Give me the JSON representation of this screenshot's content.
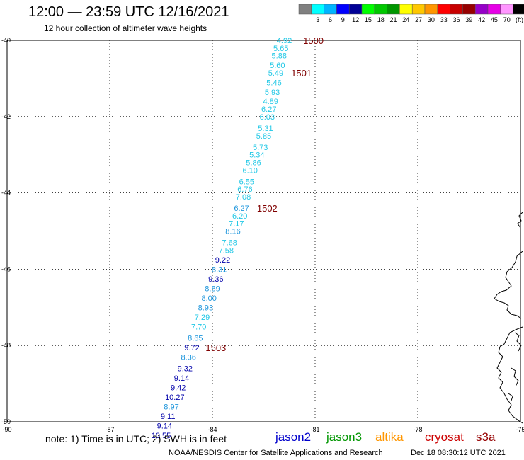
{
  "header": {
    "title": "12:00 — 23:59 UTC 12/16/2021",
    "subtitle": "12 hour collection of altimeter wave heights"
  },
  "legend": {
    "colorbar": [
      {
        "color": "#808080",
        "label": ""
      },
      {
        "color": "#00ffff",
        "label": "3"
      },
      {
        "color": "#00b4ff",
        "label": "6"
      },
      {
        "color": "#0000ff",
        "label": "9"
      },
      {
        "color": "#000096",
        "label": "12"
      },
      {
        "color": "#00ff00",
        "label": "15"
      },
      {
        "color": "#00c800",
        "label": "18"
      },
      {
        "color": "#009600",
        "label": "21"
      },
      {
        "color": "#ffff00",
        "label": "24"
      },
      {
        "color": "#ffc800",
        "label": "27"
      },
      {
        "color": "#ff9600",
        "label": "30"
      },
      {
        "color": "#ff0000",
        "label": "33"
      },
      {
        "color": "#c80000",
        "label": "36"
      },
      {
        "color": "#960000",
        "label": "39"
      },
      {
        "color": "#9600c8",
        "label": "42"
      },
      {
        "color": "#e600e6",
        "label": "45"
      },
      {
        "color": "#ff96ff",
        "label": "70"
      },
      {
        "color": "#000000",
        "label": "(ft)"
      }
    ]
  },
  "footer": {
    "note": "note:  1) Time is in UTC; 2) SWH is in feet",
    "credit": "NOAA/NESDIS Center for Satellite Applications and Research",
    "timestamp": "Dec 18 08:30:12 UTC 2021",
    "satellites": [
      {
        "name": "jason2",
        "color": "#0000cc"
      },
      {
        "name": "jason3",
        "color": "#009600"
      },
      {
        "name": "altika",
        "color": "#ff9600"
      },
      {
        "name": "cryosat",
        "color": "#cc0000"
      },
      {
        "name": "s3a",
        "color": "#960000"
      }
    ]
  },
  "colors": {
    "light": "#22c8e6",
    "mid": "#1e96dc",
    "dark": "#0000aa",
    "time_label": "#800000",
    "grid": "#000000"
  },
  "chart_data": {
    "type": "scatter",
    "xlim": [
      -90,
      -75
    ],
    "ylim": [
      -50,
      -40
    ],
    "x_ticks": [
      "-87",
      "-84",
      "-81",
      "-78",
      "-75"
    ],
    "x_ticks_left": "-90",
    "y_ticks": [
      "-40",
      "-42",
      "-44",
      "-46",
      "-48",
      "-50"
    ],
    "grid": true,
    "points": [
      {
        "lon": -81.9,
        "lat": -40.0,
        "value": "4.92",
        "shade": "light"
      },
      {
        "lon": -82.0,
        "lat": -40.2,
        "value": "5.65",
        "shade": "light"
      },
      {
        "lon": -82.05,
        "lat": -40.4,
        "value": "5.88",
        "shade": "light"
      },
      {
        "lon": -82.1,
        "lat": -40.65,
        "value": "5.60",
        "shade": "light"
      },
      {
        "lon": -82.15,
        "lat": -40.85,
        "value": "5.49",
        "shade": "light"
      },
      {
        "lon": -82.2,
        "lat": -41.1,
        "value": "5.46",
        "shade": "light"
      },
      {
        "lon": -82.25,
        "lat": -41.35,
        "value": "5.93",
        "shade": "light"
      },
      {
        "lon": -82.3,
        "lat": -41.6,
        "value": "4.89",
        "shade": "light"
      },
      {
        "lon": -82.35,
        "lat": -41.8,
        "value": "6.27",
        "shade": "light"
      },
      {
        "lon": -82.4,
        "lat": -42.0,
        "value": "6.03",
        "shade": "light"
      },
      {
        "lon": -82.45,
        "lat": -42.3,
        "value": "5.31",
        "shade": "light"
      },
      {
        "lon": -82.5,
        "lat": -42.5,
        "value": "5.85",
        "shade": "light"
      },
      {
        "lon": -82.6,
        "lat": -42.8,
        "value": "5.73",
        "shade": "light"
      },
      {
        "lon": -82.7,
        "lat": -43.0,
        "value": "5.34",
        "shade": "light"
      },
      {
        "lon": -82.8,
        "lat": -43.2,
        "value": "5.86",
        "shade": "light"
      },
      {
        "lon": -82.9,
        "lat": -43.4,
        "value": "6.10",
        "shade": "light"
      },
      {
        "lon": -83.0,
        "lat": -43.7,
        "value": "6.55",
        "shade": "light"
      },
      {
        "lon": -83.05,
        "lat": -43.9,
        "value": "6.76",
        "shade": "light"
      },
      {
        "lon": -83.1,
        "lat": -44.1,
        "value": "7.08",
        "shade": "light"
      },
      {
        "lon": -83.15,
        "lat": -44.4,
        "value": "6.27",
        "shade": "mid"
      },
      {
        "lon": -83.2,
        "lat": -44.6,
        "value": "6.20",
        "shade": "light"
      },
      {
        "lon": -83.3,
        "lat": -44.8,
        "value": "7.17",
        "shade": "light"
      },
      {
        "lon": -83.4,
        "lat": -45.0,
        "value": "8.16",
        "shade": "mid"
      },
      {
        "lon": -83.5,
        "lat": -45.3,
        "value": "7.68",
        "shade": "light"
      },
      {
        "lon": -83.6,
        "lat": -45.5,
        "value": "7.58",
        "shade": "light"
      },
      {
        "lon": -83.7,
        "lat": -45.75,
        "value": "9.22",
        "shade": "dark"
      },
      {
        "lon": -83.8,
        "lat": -46.0,
        "value": "8.31",
        "shade": "mid"
      },
      {
        "lon": -83.9,
        "lat": -46.25,
        "value": "9.36",
        "shade": "dark"
      },
      {
        "lon": -84.0,
        "lat": -46.5,
        "value": "8.89",
        "shade": "mid"
      },
      {
        "lon": -84.1,
        "lat": -46.75,
        "value": "8.00",
        "shade": "mid"
      },
      {
        "lon": -84.2,
        "lat": -47.0,
        "value": "8.93",
        "shade": "mid"
      },
      {
        "lon": -84.3,
        "lat": -47.25,
        "value": "7.29",
        "shade": "light"
      },
      {
        "lon": -84.4,
        "lat": -47.5,
        "value": "7.70",
        "shade": "light"
      },
      {
        "lon": -84.5,
        "lat": -47.8,
        "value": "8.65",
        "shade": "mid"
      },
      {
        "lon": -84.6,
        "lat": -48.05,
        "value": "9.72",
        "shade": "dark"
      },
      {
        "lon": -84.7,
        "lat": -48.3,
        "value": "8.36",
        "shade": "mid"
      },
      {
        "lon": -84.8,
        "lat": -48.6,
        "value": "9.32",
        "shade": "dark"
      },
      {
        "lon": -84.9,
        "lat": -48.85,
        "value": "9.14",
        "shade": "dark"
      },
      {
        "lon": -85.0,
        "lat": -49.1,
        "value": "9.42",
        "shade": "dark"
      },
      {
        "lon": -85.1,
        "lat": -49.35,
        "value": "10.27",
        "shade": "dark"
      },
      {
        "lon": -85.2,
        "lat": -49.6,
        "value": "8.97",
        "shade": "mid"
      },
      {
        "lon": -85.3,
        "lat": -49.85,
        "value": "9.11",
        "shade": "dark"
      },
      {
        "lon": -85.4,
        "lat": -50.1,
        "value": "9.14",
        "shade": "dark"
      },
      {
        "lon": -85.5,
        "lat": -50.35,
        "value": "10.55",
        "shade": "dark"
      }
    ],
    "time_labels": [
      {
        "lon": -81.05,
        "lat": -40.0,
        "label": "1500"
      },
      {
        "lon": -81.4,
        "lat": -40.85,
        "label": "1501"
      },
      {
        "lon": -82.4,
        "lat": -44.4,
        "label": "1502"
      },
      {
        "lon": -83.9,
        "lat": -48.05,
        "label": "1503"
      }
    ]
  }
}
